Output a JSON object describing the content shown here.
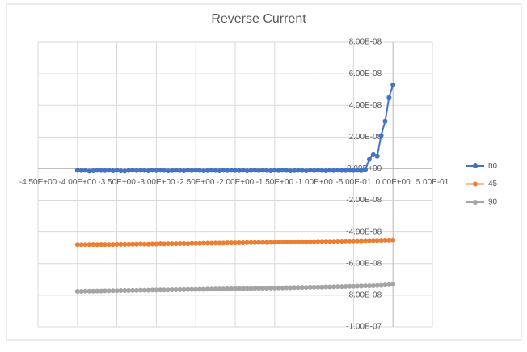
{
  "chart_data": {
    "type": "scatter",
    "title": "Reverse Current",
    "x": [
      -4,
      -3.95,
      -3.9,
      -3.85,
      -3.8,
      -3.75,
      -3.7,
      -3.65,
      -3.6,
      -3.55,
      -3.5,
      -3.45,
      -3.4,
      -3.35,
      -3.3,
      -3.25,
      -3.2,
      -3.15,
      -3.1,
      -3.05,
      -3,
      -2.95,
      -2.9,
      -2.85,
      -2.8,
      -2.75,
      -2.7,
      -2.65,
      -2.6,
      -2.55,
      -2.5,
      -2.45,
      -2.4,
      -2.35,
      -2.3,
      -2.25,
      -2.2,
      -2.15,
      -2.1,
      -2.05,
      -2,
      -1.95,
      -1.9,
      -1.85,
      -1.8,
      -1.75,
      -1.7,
      -1.65,
      -1.6,
      -1.55,
      -1.5,
      -1.45,
      -1.4,
      -1.35,
      -1.3,
      -1.25,
      -1.2,
      -1.15,
      -1.1,
      -1.05,
      -1,
      -0.95,
      -0.9,
      -0.85,
      -0.8,
      -0.75,
      -0.7,
      -0.65,
      -0.6,
      -0.55,
      -0.5,
      -0.45,
      -0.4,
      -0.35,
      -0.3,
      -0.25,
      -0.2,
      -0.15,
      -0.1,
      -0.05,
      0
    ],
    "series": [
      {
        "name": "no",
        "color": "#4472c4",
        "values": [
          -1e-09,
          -1.2e-09,
          -1e-09,
          -1.5e-09,
          -1.3e-09,
          -1e-09,
          -1.1e-09,
          -1.2e-09,
          -1e-09,
          -1.3e-09,
          -1e-09,
          -1.4e-09,
          -1.5e-09,
          -1.1e-09,
          -1e-09,
          -1.2e-09,
          -1e-09,
          -1.1e-09,
          -1.3e-09,
          -1e-09,
          -1.2e-09,
          -1e-09,
          -1.1e-09,
          -1.4e-09,
          -1.2e-09,
          -1e-09,
          -1.1e-09,
          -1.3e-09,
          -1e-09,
          -1.2e-09,
          -1e-09,
          -1.1e-09,
          -1.4e-09,
          -1.2e-09,
          -1e-09,
          -1.1e-09,
          -1.3e-09,
          -1e-09,
          -1.2e-09,
          -1e-09,
          -1.1e-09,
          -1.2e-09,
          -1e-09,
          -1.3e-09,
          -1.1e-09,
          -1e-09,
          -1.2e-09,
          -1e-09,
          -1.1e-09,
          -1.3e-09,
          -1e-09,
          -1.2e-09,
          -1e-09,
          -1.1e-09,
          -1.4e-09,
          -1.2e-09,
          -1e-09,
          -1.1e-09,
          -1.3e-09,
          -1e-09,
          -1.2e-09,
          -1e-09,
          -1.1e-09,
          -1.3e-09,
          -1e-09,
          -1.2e-09,
          -1e-09,
          -1.1e-09,
          -1.2e-09,
          -1e-09,
          -1.1e-09,
          -1e-09,
          -1.2e-09,
          -5e-10,
          6e-09,
          9e-09,
          8e-09,
          2.1e-08,
          3e-08,
          4.5e-08,
          5.3e-08
        ]
      },
      {
        "name": "45",
        "color": "#ed7d31",
        "values": [
          -4.8e-08,
          -4.8e-08,
          -4.8e-08,
          -4.8e-08,
          -4.79e-08,
          -4.8e-08,
          -4.79e-08,
          -4.79e-08,
          -4.79e-08,
          -4.79e-08,
          -4.78e-08,
          -4.78e-08,
          -4.78e-08,
          -4.78e-08,
          -4.77e-08,
          -4.77e-08,
          -4.75e-08,
          -4.77e-08,
          -4.77e-08,
          -4.76e-08,
          -4.76e-08,
          -4.74e-08,
          -4.75e-08,
          -4.74e-08,
          -4.74e-08,
          -4.74e-08,
          -4.73e-08,
          -4.73e-08,
          -4.74e-08,
          -4.72e-08,
          -4.72e-08,
          -4.72e-08,
          -4.71e-08,
          -4.71e-08,
          -4.71e-08,
          -4.7e-08,
          -4.7e-08,
          -4.7e-08,
          -4.69e-08,
          -4.69e-08,
          -4.69e-08,
          -4.68e-08,
          -4.68e-08,
          -4.67e-08,
          -4.67e-08,
          -4.67e-08,
          -4.66e-08,
          -4.66e-08,
          -4.66e-08,
          -4.65e-08,
          -4.65e-08,
          -4.64e-08,
          -4.64e-08,
          -4.64e-08,
          -4.63e-08,
          -4.63e-08,
          -4.62e-08,
          -4.62e-08,
          -4.62e-08,
          -4.61e-08,
          -4.61e-08,
          -4.6e-08,
          -4.6e-08,
          -4.59e-08,
          -4.59e-08,
          -4.59e-08,
          -4.58e-08,
          -4.58e-08,
          -4.57e-08,
          -4.57e-08,
          -4.57e-08,
          -4.56e-08,
          -4.56e-08,
          -4.55e-08,
          -4.55e-08,
          -4.54e-08,
          -4.54e-08,
          -4.53e-08,
          -4.52e-08,
          -4.52e-08,
          -4.51e-08
        ]
      },
      {
        "name": "90",
        "color": "#a5a5a5",
        "values": [
          -7.75e-08,
          -7.75e-08,
          -7.74e-08,
          -7.74e-08,
          -7.74e-08,
          -7.73e-08,
          -7.73e-08,
          -7.72e-08,
          -7.72e-08,
          -7.71e-08,
          -7.71e-08,
          -7.7e-08,
          -7.7e-08,
          -7.7e-08,
          -7.69e-08,
          -7.69e-08,
          -7.68e-08,
          -7.68e-08,
          -7.68e-08,
          -7.67e-08,
          -7.67e-08,
          -7.66e-08,
          -7.66e-08,
          -7.66e-08,
          -7.65e-08,
          -7.65e-08,
          -7.64e-08,
          -7.64e-08,
          -7.63e-08,
          -7.63e-08,
          -7.63e-08,
          -7.62e-08,
          -7.62e-08,
          -7.61e-08,
          -7.61e-08,
          -7.6e-08,
          -7.6e-08,
          -7.6e-08,
          -7.59e-08,
          -7.59e-08,
          -7.58e-08,
          -7.58e-08,
          -7.57e-08,
          -7.57e-08,
          -7.57e-08,
          -7.56e-08,
          -7.56e-08,
          -7.55e-08,
          -7.55e-08,
          -7.54e-08,
          -7.54e-08,
          -7.53e-08,
          -7.53e-08,
          -7.52e-08,
          -7.52e-08,
          -7.51e-08,
          -7.51e-08,
          -7.5e-08,
          -7.5e-08,
          -7.49e-08,
          -7.49e-08,
          -7.48e-08,
          -7.48e-08,
          -7.47e-08,
          -7.47e-08,
          -7.46e-08,
          -7.45e-08,
          -7.45e-08,
          -7.44e-08,
          -7.43e-08,
          -7.43e-08,
          -7.42e-08,
          -7.41e-08,
          -7.4e-08,
          -7.4e-08,
          -7.39e-08,
          -7.38e-08,
          -7.37e-08,
          -7.35e-08,
          -7.33e-08,
          -7.3e-08
        ]
      }
    ],
    "xlim": [
      -4.5,
      0.5
    ],
    "xticks": [
      {
        "value": -4.5,
        "label": "-4.50E+00"
      },
      {
        "value": -4,
        "label": "-4.00E+00"
      },
      {
        "value": -3.5,
        "label": "-3.50E+00"
      },
      {
        "value": -3,
        "label": "-3.00E+00"
      },
      {
        "value": -2.5,
        "label": "-2.50E+00"
      },
      {
        "value": -2,
        "label": "-2.00E+00"
      },
      {
        "value": -1.5,
        "label": "-1.50E+00"
      },
      {
        "value": -1,
        "label": "-1.00E+00"
      },
      {
        "value": -0.5,
        "label": "-5.00E-01"
      },
      {
        "value": 0,
        "label": "0.00E+00"
      },
      {
        "value": 0.5,
        "label": "5.00E-01"
      }
    ],
    "ylim": [
      -1e-07,
      8e-08
    ],
    "yticks": [
      {
        "value": 8e-08,
        "label": "8.00E-08"
      },
      {
        "value": 6e-08,
        "label": "6.00E-08"
      },
      {
        "value": 4e-08,
        "label": "4.00E-08"
      },
      {
        "value": 2e-08,
        "label": "2.00E-08"
      },
      {
        "value": 0,
        "label": "0.00E+00"
      },
      {
        "value": -2e-08,
        "label": "-2.00E-08"
      },
      {
        "value": -4e-08,
        "label": "-4.00E-08"
      },
      {
        "value": -6e-08,
        "label": "-6.00E-08"
      },
      {
        "value": -8e-08,
        "label": "-8.00E-08"
      },
      {
        "value": -1e-07,
        "label": "-1.00E-07"
      }
    ],
    "grid": true,
    "legend": "right"
  }
}
